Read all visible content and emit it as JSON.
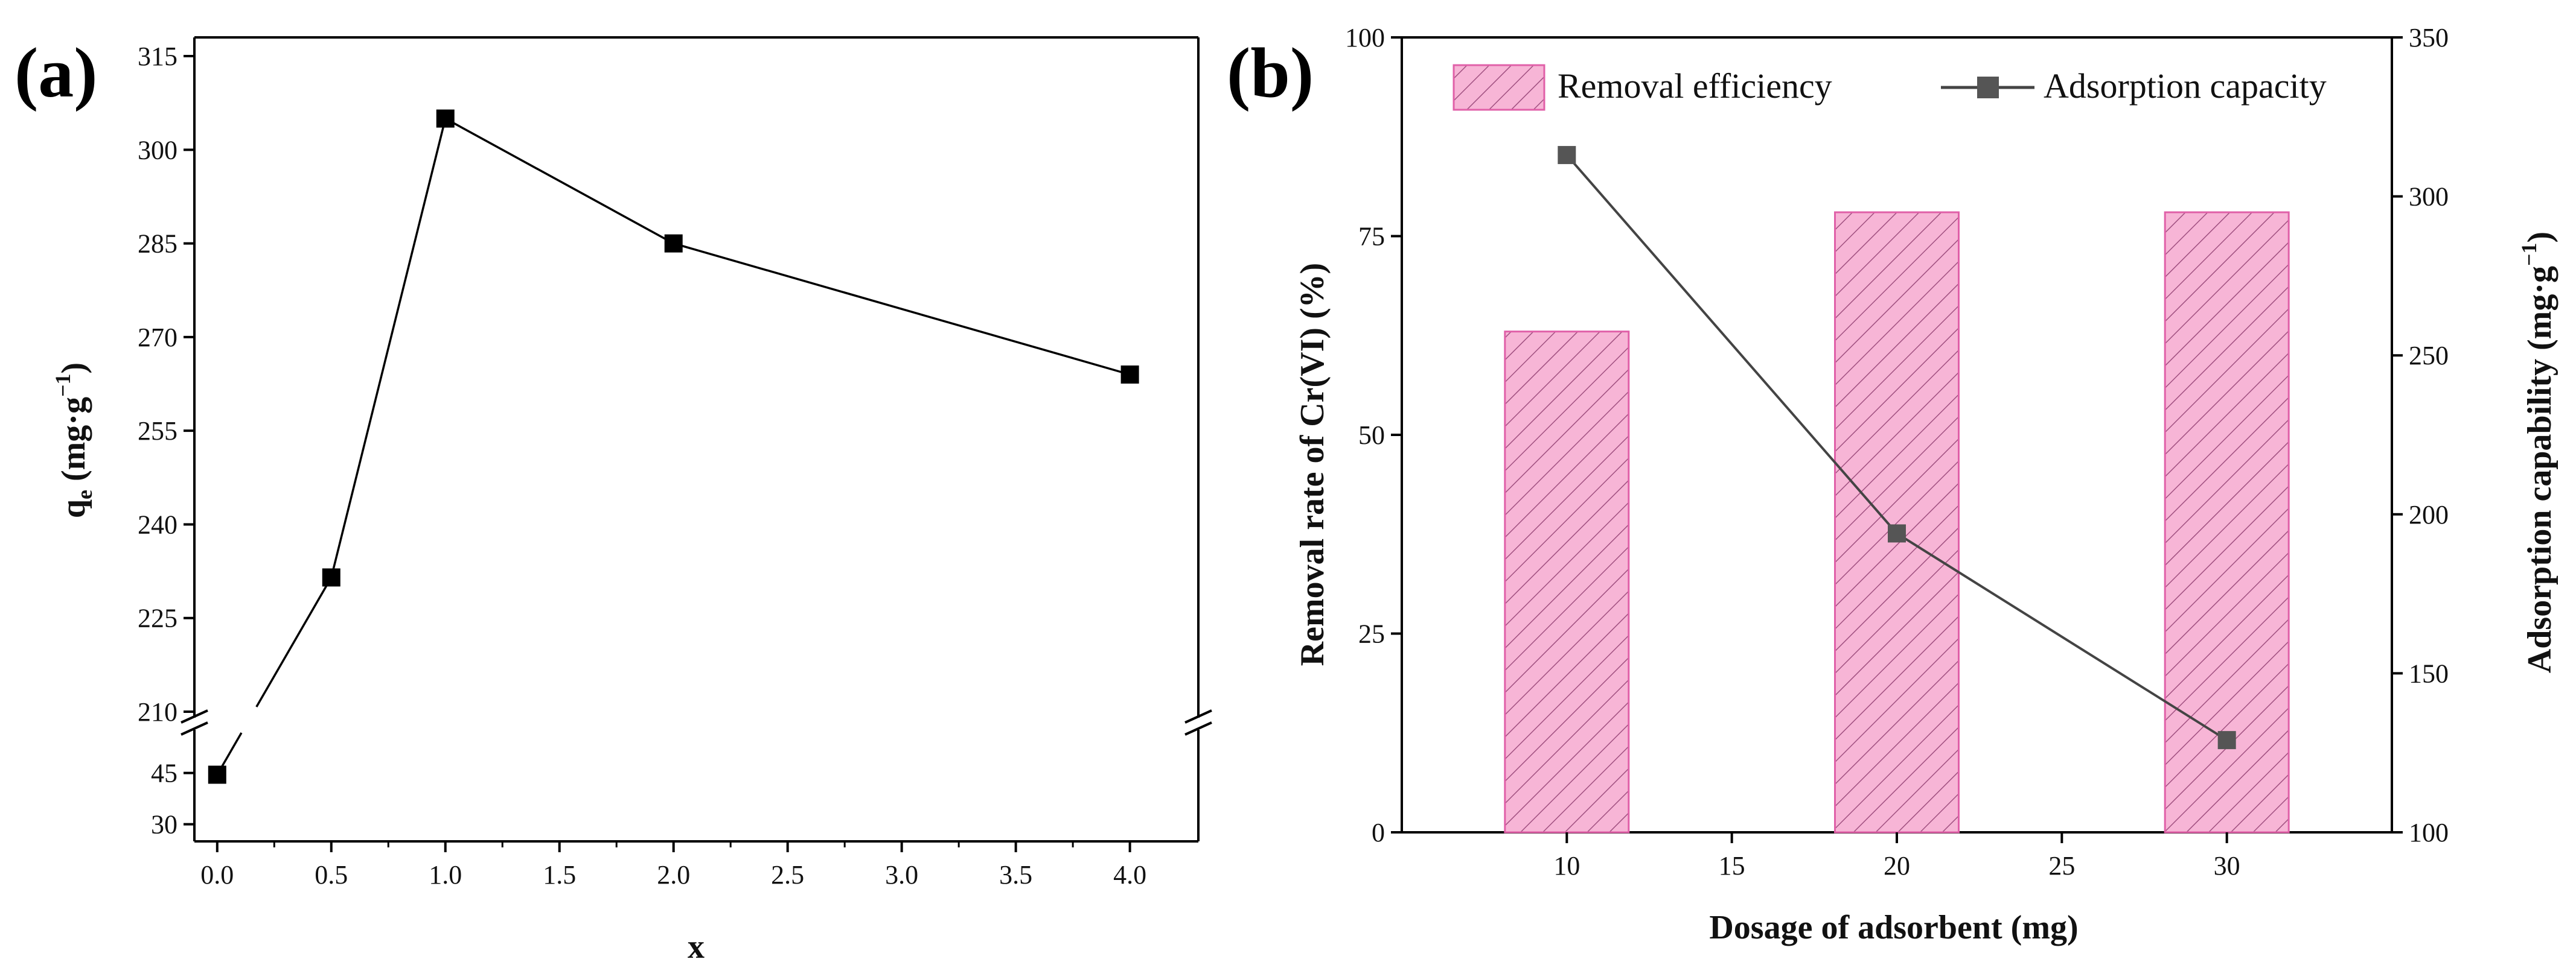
{
  "chart_data": [
    {
      "panel": "(a)",
      "type": "line",
      "xlabel": "x",
      "ylabel": "q",
      "ylabel_sub": "e",
      "ylabel_unit": "(mg·g",
      "ylabel_sup": "−1",
      "ylabel_close": ")",
      "x_ticks": [
        "0.0",
        "0.5",
        "1.0",
        "1.5",
        "2.0",
        "2.5",
        "3.0",
        "3.5",
        "4.0"
      ],
      "y_ticks_upper": [
        "210",
        "225",
        "240",
        "255",
        "270",
        "285",
        "300",
        "315"
      ],
      "y_ticks_lower": [
        "30",
        "45"
      ],
      "xlim": [
        -0.1,
        4.3
      ],
      "ylim_upper": [
        210,
        318
      ],
      "ylim_lower": [
        25,
        55
      ],
      "axis_break": true,
      "series": [
        {
          "name": "qe",
          "x": [
            0.0,
            0.5,
            1.0,
            2.0,
            4.0
          ],
          "y": [
            44.5,
            231.5,
            305,
            285,
            264
          ]
        }
      ]
    },
    {
      "panel": "(b)",
      "type": "bar",
      "xlabel": "Dosage of adsorbent (mg)",
      "ylabel_left": "Removal rate of Cr(VI) (%)",
      "ylabel_right": "Adsorption capability (mg·g",
      "ylabel_right_sup": "−1",
      "ylabel_right_close": ")",
      "x_ticks": [
        "10",
        "15",
        "20",
        "25",
        "30"
      ],
      "y_ticks_left": [
        "0",
        "25",
        "50",
        "75",
        "100"
      ],
      "y_ticks_right": [
        "100",
        "150",
        "200",
        "250",
        "300",
        "350"
      ],
      "xlim": [
        5,
        35
      ],
      "ylim_left": [
        0,
        100
      ],
      "ylim_right": [
        100,
        350
      ],
      "legend": [
        "Removal efficiency",
        "Adsorption capacity"
      ],
      "bars": {
        "name": "Removal efficiency",
        "x": [
          10,
          20,
          30
        ],
        "values": [
          63,
          78,
          78
        ],
        "color": "#f7b5d6",
        "edge": "#e060a8"
      },
      "line": {
        "name": "Adsorption capacity",
        "x": [
          10,
          20,
          30
        ],
        "values": [
          313,
          194,
          129
        ],
        "color": "#444444"
      }
    }
  ]
}
